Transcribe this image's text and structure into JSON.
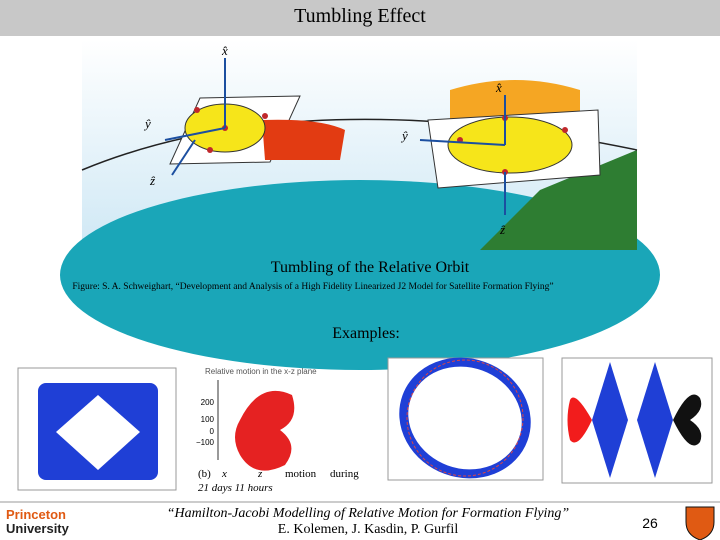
{
  "header": {
    "title": "Tumbling Effect"
  },
  "figure": {
    "left_axes": [
      "x̂",
      "ŷ",
      "ẑ"
    ],
    "right_axes": [
      "x̂",
      "ŷ",
      "ẑ"
    ],
    "caption": "Tumbling of the Relative Orbit",
    "source": "Figure: S. A. Schweighart, “Development and Analysis of a High Fidelity Linearized J2 Model for Satellite Formation Flying”"
  },
  "examples": {
    "heading": "Examples:",
    "plot2": {
      "title": "Relative motion in the x-z plane",
      "label": "(b)",
      "caption": [
        "x",
        "z",
        "motion",
        "during"
      ],
      "duration": "21 days 11 hours",
      "yticks": [
        "200",
        "100",
        "0",
        "−100"
      ]
    }
  },
  "footer": {
    "logo": [
      "Princeton",
      "University"
    ],
    "citation": "“Hamilton-Jacobi Modelling of Relative Motion for Formation Flying”",
    "authors": "E. Kolemen, J. Kasdin, P. Gurfil",
    "page": "26"
  }
}
